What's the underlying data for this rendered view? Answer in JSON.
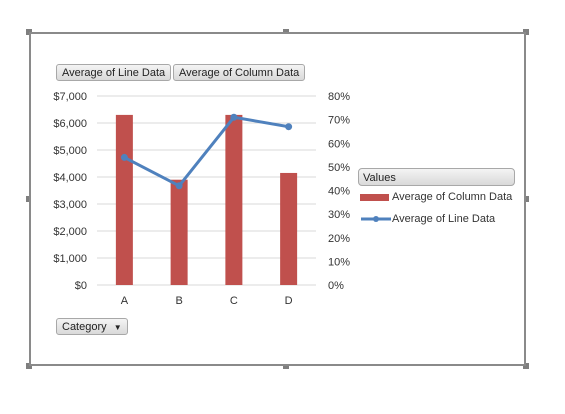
{
  "field_buttons": {
    "line": "Average of Line Data",
    "column": "Average of Column Data",
    "category": "Category",
    "category_dropdown_glyph": "▼"
  },
  "legend": {
    "header": "Values",
    "column_label": "Average of Column Data",
    "line_label": "Average of Line Data"
  },
  "colors": {
    "column": "#c0504d",
    "line": "#4f81bd",
    "grid": "#d9d9d9",
    "frame": "#8a8a8a"
  },
  "chart_data": {
    "type": "bar",
    "categories": [
      "A",
      "B",
      "C",
      "D"
    ],
    "series": [
      {
        "name": "Average of Column Data",
        "type": "bar",
        "axis": "left",
        "values": [
          6300,
          3900,
          6300,
          4150
        ]
      },
      {
        "name": "Average of Line Data",
        "type": "line",
        "axis": "right",
        "values": [
          0.54,
          0.42,
          0.71,
          0.67
        ]
      }
    ],
    "y_left": {
      "range": [
        0,
        7000
      ],
      "ticks": [
        0,
        1000,
        2000,
        3000,
        4000,
        5000,
        6000,
        7000
      ],
      "tick_labels": [
        "$0",
        "$1,000",
        "$2,000",
        "$3,000",
        "$4,000",
        "$5,000",
        "$6,000",
        "$7,000"
      ]
    },
    "y_right": {
      "range": [
        0,
        0.8
      ],
      "ticks": [
        0,
        0.1,
        0.2,
        0.3,
        0.4,
        0.5,
        0.6,
        0.7,
        0.8
      ],
      "tick_labels": [
        "0%",
        "10%",
        "20%",
        "30%",
        "40%",
        "50%",
        "60%",
        "70%",
        "80%"
      ]
    },
    "grid": true,
    "legend_position": "right"
  }
}
